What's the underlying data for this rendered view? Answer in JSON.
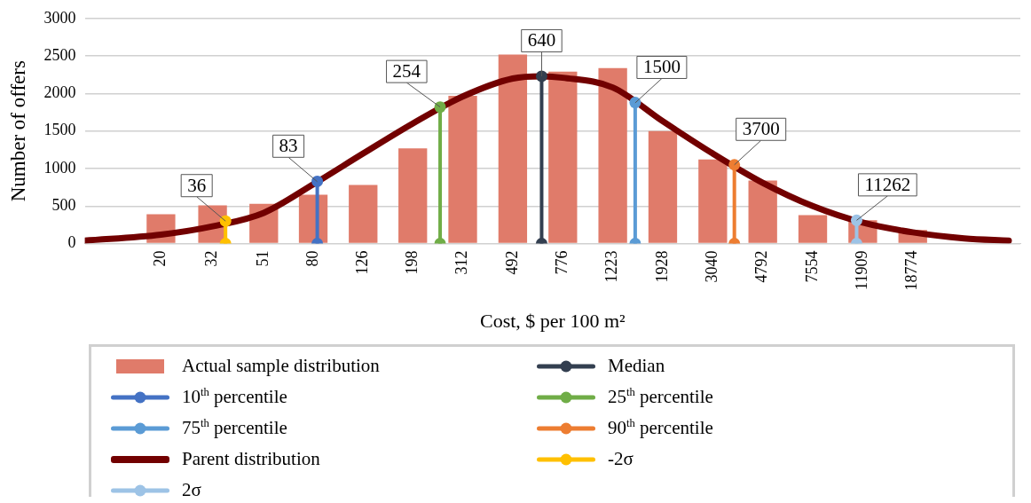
{
  "chart_data": {
    "type": "bar",
    "xlabel": "Cost, $ per 100 m²",
    "ylabel": "Number of offers",
    "x": [
      20,
      32,
      51,
      80,
      126,
      198,
      312,
      492,
      776,
      1223,
      1928,
      3040,
      4792,
      7554,
      11909,
      18774
    ],
    "log": "x",
    "xlim": [
      10,
      50000
    ],
    "xticks": [
      20,
      32,
      51,
      80,
      126,
      198,
      312,
      492,
      776,
      1223,
      1928,
      3040,
      4792,
      7554,
      11909,
      18774
    ],
    "ylim": [
      0,
      3000
    ],
    "yticks": [
      0,
      500,
      1000,
      1500,
      2000,
      2500,
      3000
    ],
    "grid": "y",
    "legend": "bottom",
    "series": [
      {
        "name": "Actual sample distribution",
        "color": "#e07b6a",
        "values": [
          390,
          510,
          530,
          650,
          780,
          1270,
          1970,
          2520,
          2290,
          2340,
          1500,
          1120,
          840,
          380,
          310,
          180
        ]
      },
      {
        "name": "Median",
        "type": "line",
        "marker": "circle",
        "color": "#333f50",
        "x": [
          640,
          640
        ],
        "values": [
          0,
          2230
        ]
      },
      {
        "name": "10$^{th}$ percentile",
        "type": "line",
        "marker": "circle",
        "color": "#4472c4",
        "x": [
          83,
          83
        ],
        "values": [
          0,
          830
        ]
      },
      {
        "name": "25$^{th}$ percentile",
        "type": "line",
        "marker": "circle",
        "color": "#70ad47",
        "x": [
          254,
          254
        ],
        "values": [
          0,
          1820
        ]
      },
      {
        "name": "75$^{th}$ percentile",
        "type": "line",
        "marker": "circle",
        "color": "#5b9bd5",
        "x": [
          1500,
          1500
        ],
        "values": [
          0,
          1880
        ]
      },
      {
        "name": "90$^{th}$ percentile",
        "type": "line",
        "marker": "circle",
        "color": "#ed7d31",
        "x": [
          3700,
          3700
        ],
        "values": [
          0,
          1050
        ]
      },
      {
        "name": "Parent distribution",
        "type": "line",
        "marker": "none",
        "color": "#720000",
        "x": [
          10,
          20,
          32,
          51,
          80,
          126,
          198,
          312,
          492,
          640,
          776,
          1223,
          1928,
          3040,
          4792,
          7554,
          11909,
          18774,
          30000,
          45000
        ],
        "values": [
          40,
          120,
          230,
          410,
          790,
          1200,
          1600,
          1960,
          2200,
          2230,
          2210,
          2080,
          1630,
          1200,
          810,
          500,
          280,
          150,
          70,
          40
        ]
      },
      {
        "name": "-2σ",
        "type": "line",
        "marker": "circle",
        "color": "#ffc000",
        "x": [
          36,
          36
        ],
        "values": [
          0,
          300
        ]
      },
      {
        "name": "2σ",
        "type": "line",
        "marker": "circle",
        "color": "#9dc3e6",
        "x": [
          11262,
          11262
        ],
        "values": [
          0,
          310
        ]
      }
    ],
    "annotations": [
      {
        "text": "36",
        "x": 36,
        "y": 300
      },
      {
        "text": "83",
        "x": 83,
        "y": 825
      },
      {
        "text": "254",
        "x": 254,
        "y": 1820
      },
      {
        "text": "640",
        "x": 640,
        "y": 2230
      },
      {
        "text": "1500",
        "x": 1500,
        "y": 1875
      },
      {
        "text": "3700",
        "x": 3700,
        "y": 1050
      },
      {
        "text": "11262",
        "x": 11262,
        "y": 310
      }
    ]
  }
}
